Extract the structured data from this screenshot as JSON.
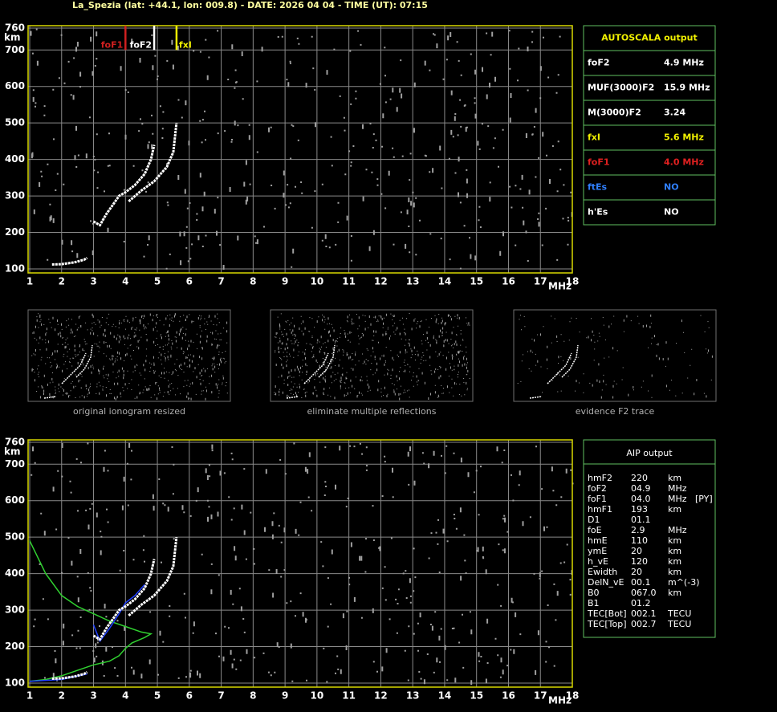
{
  "header": {
    "title": "La_Spezia (lat: +44.1, lon: 009.8) - DATE: 2026 04 04 - TIME (UT): 07:15"
  },
  "chart_data": [
    {
      "type": "line",
      "x_label": "MHz",
      "y_label": "km",
      "xlim": [
        1,
        18
      ],
      "ylim": [
        100,
        760
      ],
      "xticks": [
        1,
        2,
        3,
        4,
        5,
        6,
        7,
        8,
        9,
        10,
        11,
        12,
        13,
        14,
        15,
        16,
        17,
        18
      ],
      "yticks": [
        100,
        200,
        300,
        400,
        500,
        600,
        700,
        760
      ],
      "grid": true,
      "markers": [
        {
          "name": "foF1",
          "value": 4.0,
          "color": "#d02020"
        },
        {
          "name": "foF2",
          "value": 4.9,
          "color": "#ffffff"
        },
        {
          "name": "fxI",
          "value": 5.6,
          "color": "#f0f000"
        }
      ],
      "series": [
        {
          "color": "#ffffff",
          "x": [
            1.7,
            2.0,
            2.4,
            2.7,
            2.8,
            null,
            3.0,
            3.2,
            3.4,
            3.6,
            3.8,
            4.0,
            4.3,
            4.6,
            4.8,
            4.9,
            null,
            4.1,
            4.5,
            4.9,
            5.1,
            5.3,
            5.5,
            5.6
          ],
          "values": [
            112,
            113,
            118,
            125,
            130,
            null,
            230,
            220,
            250,
            275,
            300,
            310,
            330,
            360,
            400,
            440,
            null,
            285,
            315,
            340,
            360,
            380,
            420,
            500
          ]
        }
      ]
    },
    {
      "type": "line",
      "x_label": "MHz",
      "y_label": "km",
      "xlim": [
        1,
        18
      ],
      "ylim": [
        100,
        760
      ],
      "xticks": [
        1,
        2,
        3,
        4,
        5,
        6,
        7,
        8,
        9,
        10,
        11,
        12,
        13,
        14,
        15,
        16,
        17,
        18
      ],
      "yticks": [
        100,
        200,
        300,
        400,
        500,
        600,
        700,
        760
      ],
      "grid": true,
      "series": [
        {
          "color": "#30d030",
          "x": [
            1.0,
            1.5,
            2.0,
            2.5,
            3.0,
            3.5,
            4.0,
            4.5,
            4.8,
            4.6,
            4.2,
            4.0,
            3.8,
            3.5,
            3.0,
            2.5,
            2.0,
            1.5,
            1.0
          ],
          "values": [
            490,
            400,
            340,
            310,
            290,
            270,
            255,
            240,
            235,
            225,
            210,
            195,
            175,
            160,
            150,
            135,
            120,
            110,
            105
          ]
        },
        {
          "color": "#2040ff",
          "x": [
            1.0,
            2.0,
            2.8,
            null,
            3.0,
            3.2,
            3.5,
            3.8,
            4.0,
            4.3,
            4.6
          ],
          "values": [
            105,
            110,
            125,
            null,
            260,
            215,
            250,
            290,
            320,
            340,
            370
          ]
        },
        {
          "color": "#ffffff",
          "x": [
            1.7,
            2.0,
            2.4,
            2.7,
            2.8,
            null,
            3.0,
            3.2,
            3.4,
            3.6,
            3.8,
            4.0,
            4.3,
            4.6,
            4.8,
            4.9,
            null,
            4.1,
            4.5,
            4.9,
            5.1,
            5.3,
            5.5,
            5.6
          ],
          "values": [
            112,
            113,
            118,
            125,
            130,
            null,
            230,
            220,
            250,
            275,
            300,
            310,
            330,
            360,
            400,
            440,
            null,
            285,
            315,
            340,
            360,
            380,
            420,
            500
          ]
        }
      ]
    }
  ],
  "thumbnails": [
    "original ionogram resized",
    "eliminate multiple reflections",
    "evidence F2 trace"
  ],
  "autoscala": {
    "title": "AUTOSCALA output",
    "rows": [
      {
        "label": "foF2",
        "value": "4.9 MHz",
        "color": "#ffffff"
      },
      {
        "label": "MUF(3000)F2",
        "value": "15.9 MHz",
        "color": "#ffffff"
      },
      {
        "label": "M(3000)F2",
        "value": "3.24",
        "color": "#ffffff"
      },
      {
        "label": "fxI",
        "value": "5.6 MHz",
        "color": "#f0f000"
      },
      {
        "label": "foF1",
        "value": "4.0 MHz",
        "color": "#e02020"
      },
      {
        "label": "ftEs",
        "value": "NO",
        "color": "#3080ff"
      },
      {
        "label": "h'Es",
        "value": "NO",
        "color": "#ffffff"
      }
    ]
  },
  "aip": {
    "title": "AIP output",
    "rows": [
      [
        "hmF2",
        "220",
        "km"
      ],
      [
        "foF2",
        "04.9",
        "MHz"
      ],
      [
        "foF1",
        "04.0",
        "MHz",
        "[PY]"
      ],
      [
        "hmF1",
        "193",
        "km"
      ],
      [
        "D1",
        "01.1"
      ],
      [
        "foE",
        "2.9",
        "MHz"
      ],
      [
        "hmE",
        "110",
        "km"
      ],
      [
        "ymE",
        "20",
        "km"
      ],
      [
        "h_vE",
        "120",
        "km"
      ],
      [
        "Ewidth",
        "20",
        "km"
      ],
      [
        "DelN_vE",
        "00.1",
        "m^(-3)"
      ],
      [
        "B0",
        "067.0",
        "km"
      ],
      [
        "B1",
        "01.2"
      ],
      [
        "TEC[Bot]",
        "002.1",
        "TECU"
      ],
      [
        "TEC[Top]",
        "002.7",
        "TECU"
      ]
    ]
  }
}
